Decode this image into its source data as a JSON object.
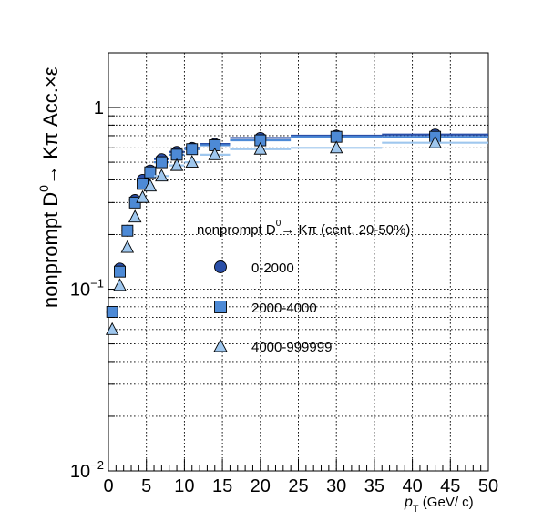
{
  "chart_data": {
    "type": "scatter",
    "xlim": [
      0,
      50
    ],
    "ylim": [
      0.01,
      2
    ],
    "yscale": "log",
    "grid": true,
    "xticks": [
      "0",
      "5",
      "10",
      "15",
      "20",
      "25",
      "30",
      "35",
      "40",
      "45",
      "50"
    ],
    "yticks": [
      {
        "base": "10",
        "exp": "−2"
      },
      {
        "base": "10",
        "exp": "−1"
      },
      {
        "base": "1",
        "exp": ""
      }
    ],
    "ylabel": {
      "main": "nonprompt D",
      "sup": "0",
      "rest": "→ Kπ Acc.×ε"
    },
    "xlabel": {
      "main": "p",
      "sub": "T",
      "rest": " (GeV/ c)"
    },
    "legend": {
      "title_main": "nonprompt D",
      "title_sup": "0",
      "title_rest": "→ Kπ (cent. 20-50%)",
      "placement": "center-right"
    },
    "series": [
      {
        "name": "0-2000",
        "marker": "circle",
        "color": "#2a4fa8",
        "x": [
          0.5,
          1.5,
          2.5,
          3.5,
          4.5,
          5.5,
          7,
          9,
          11,
          14,
          20,
          30,
          43
        ],
        "xerr": [
          0.5,
          0.5,
          0.5,
          0.5,
          0.5,
          0.5,
          1,
          1,
          1,
          2,
          4,
          6,
          7
        ],
        "y": [
          0.075,
          0.13,
          0.21,
          0.31,
          0.4,
          0.45,
          0.52,
          0.57,
          0.6,
          0.63,
          0.68,
          0.7,
          0.71
        ]
      },
      {
        "name": "2000-4000",
        "marker": "square",
        "color": "#4d8ad6",
        "x": [
          0.5,
          1.5,
          2.5,
          3.5,
          4.5,
          5.5,
          7,
          9,
          11,
          14,
          20,
          30,
          43
        ],
        "xerr": [
          0.5,
          0.5,
          0.5,
          0.5,
          0.5,
          0.5,
          1,
          1,
          1,
          2,
          4,
          6,
          7
        ],
        "y": [
          0.075,
          0.125,
          0.21,
          0.3,
          0.38,
          0.44,
          0.5,
          0.55,
          0.59,
          0.62,
          0.66,
          0.69,
          0.69
        ]
      },
      {
        "name": "4000-999999",
        "marker": "triangle",
        "color": "#9fc7ee",
        "x": [
          0.5,
          1.5,
          2.5,
          3.5,
          4.5,
          5.5,
          7,
          9,
          11,
          14,
          20,
          30,
          43
        ],
        "xerr": [
          0.5,
          0.5,
          0.5,
          0.5,
          0.5,
          0.5,
          1,
          1,
          1,
          2,
          4,
          6,
          7
        ],
        "y": [
          0.06,
          0.105,
          0.17,
          0.25,
          0.32,
          0.37,
          0.42,
          0.48,
          0.5,
          0.55,
          0.59,
          0.6,
          0.64
        ]
      }
    ]
  }
}
